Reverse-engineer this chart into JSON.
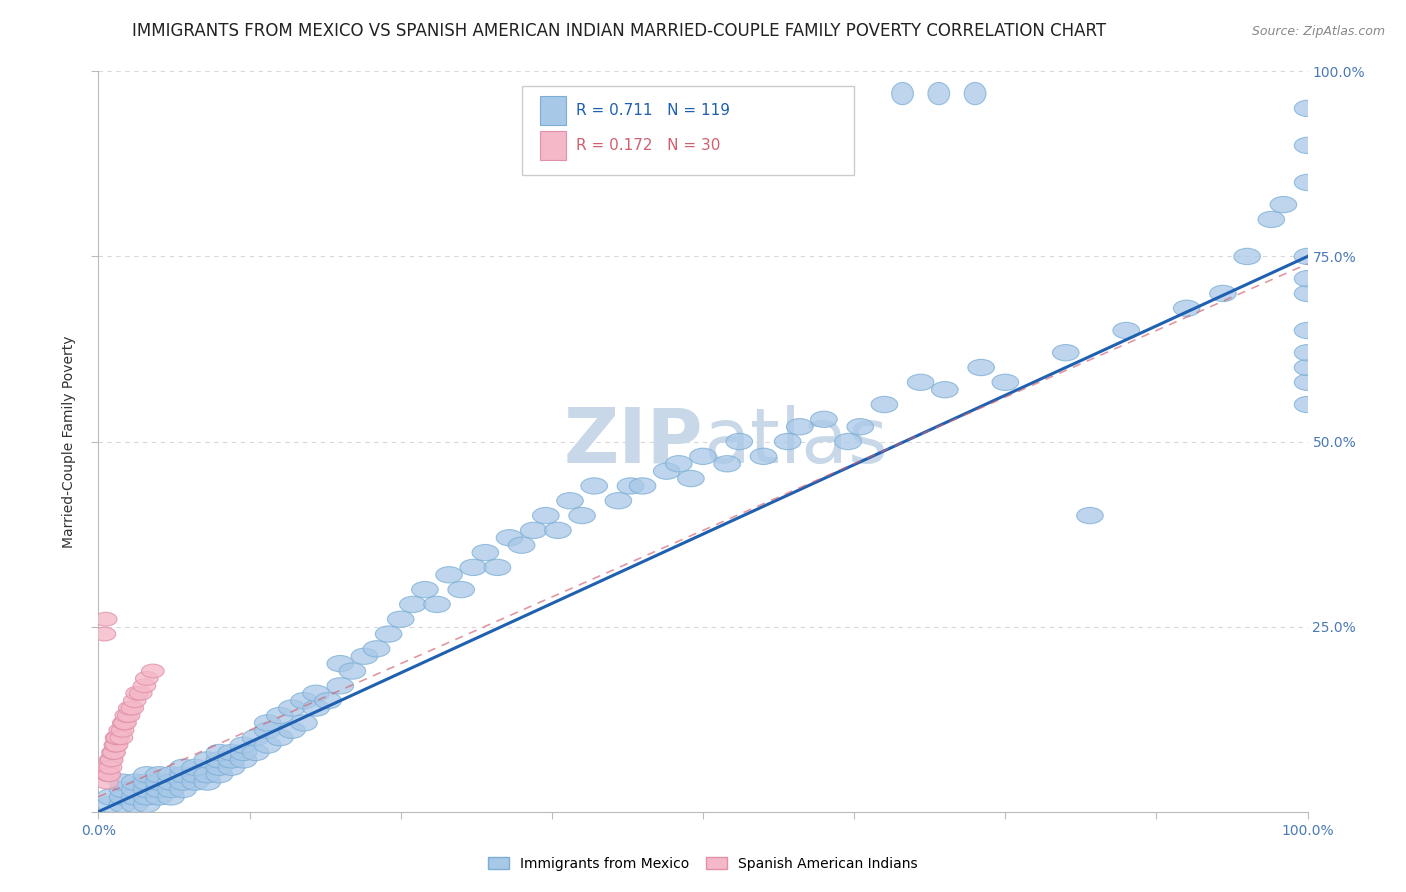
{
  "title": "IMMIGRANTS FROM MEXICO VS SPANISH AMERICAN INDIAN MARRIED-COUPLE FAMILY POVERTY CORRELATION CHART",
  "source": "Source: ZipAtlas.com",
  "ylabel": "Married-Couple Family Poverty",
  "xlim": [
    0,
    1.0
  ],
  "ylim": [
    0,
    1.0
  ],
  "blue_color": "#a8c8e8",
  "blue_edge_color": "#7aaed4",
  "pink_color": "#f4b8c8",
  "pink_edge_color": "#e090a8",
  "blue_line_color": "#2060b0",
  "pink_line_color": "#d06070",
  "grid_color": "#d8d8d8",
  "watermark_color": "#dce8f0",
  "R_blue": 0.711,
  "N_blue": 119,
  "R_pink": 0.172,
  "N_pink": 30,
  "blue_slope": 0.75,
  "blue_intercept": 0.0,
  "pink_slope": 0.72,
  "pink_intercept": 0.02,
  "background_color": "#ffffff",
  "title_fontsize": 12,
  "axis_label_fontsize": 10,
  "tick_fontsize": 10,
  "legend_fontsize": 11,
  "watermark_fontsize": 55,
  "blue_scatter_x": [
    0.01,
    0.01,
    0.02,
    0.02,
    0.02,
    0.02,
    0.03,
    0.03,
    0.03,
    0.03,
    0.04,
    0.04,
    0.04,
    0.04,
    0.04,
    0.05,
    0.05,
    0.05,
    0.05,
    0.06,
    0.06,
    0.06,
    0.06,
    0.07,
    0.07,
    0.07,
    0.07,
    0.08,
    0.08,
    0.08,
    0.09,
    0.09,
    0.09,
    0.1,
    0.1,
    0.1,
    0.1,
    0.11,
    0.11,
    0.11,
    0.12,
    0.12,
    0.12,
    0.13,
    0.13,
    0.14,
    0.14,
    0.14,
    0.15,
    0.15,
    0.16,
    0.16,
    0.17,
    0.17,
    0.18,
    0.18,
    0.19,
    0.2,
    0.2,
    0.21,
    0.22,
    0.23,
    0.24,
    0.25,
    0.26,
    0.27,
    0.28,
    0.29,
    0.3,
    0.31,
    0.32,
    0.33,
    0.34,
    0.35,
    0.36,
    0.37,
    0.38,
    0.39,
    0.4,
    0.41,
    0.43,
    0.44,
    0.45,
    0.47,
    0.48,
    0.49,
    0.5,
    0.52,
    0.53,
    0.55,
    0.57,
    0.58,
    0.6,
    0.62,
    0.63,
    0.65,
    0.68,
    0.7,
    0.73,
    0.75,
    0.8,
    0.82,
    0.85,
    0.9,
    0.93,
    0.95,
    0.97,
    0.98,
    1.0,
    1.0,
    1.0,
    1.0,
    1.0,
    1.0,
    1.0,
    1.0,
    1.0,
    1.0,
    1.0
  ],
  "blue_scatter_y": [
    0.01,
    0.02,
    0.01,
    0.02,
    0.03,
    0.04,
    0.01,
    0.02,
    0.03,
    0.04,
    0.01,
    0.02,
    0.03,
    0.04,
    0.05,
    0.02,
    0.03,
    0.04,
    0.05,
    0.02,
    0.03,
    0.04,
    0.05,
    0.03,
    0.04,
    0.05,
    0.06,
    0.04,
    0.05,
    0.06,
    0.04,
    0.05,
    0.07,
    0.05,
    0.06,
    0.07,
    0.08,
    0.06,
    0.07,
    0.08,
    0.07,
    0.08,
    0.09,
    0.08,
    0.1,
    0.09,
    0.11,
    0.12,
    0.1,
    0.13,
    0.11,
    0.14,
    0.12,
    0.15,
    0.14,
    0.16,
    0.15,
    0.17,
    0.2,
    0.19,
    0.21,
    0.22,
    0.24,
    0.26,
    0.28,
    0.3,
    0.28,
    0.32,
    0.3,
    0.33,
    0.35,
    0.33,
    0.37,
    0.36,
    0.38,
    0.4,
    0.38,
    0.42,
    0.4,
    0.44,
    0.42,
    0.44,
    0.44,
    0.46,
    0.47,
    0.45,
    0.48,
    0.47,
    0.5,
    0.48,
    0.5,
    0.52,
    0.53,
    0.5,
    0.52,
    0.55,
    0.58,
    0.57,
    0.6,
    0.58,
    0.62,
    0.4,
    0.65,
    0.68,
    0.7,
    0.75,
    0.8,
    0.82,
    0.85,
    0.55,
    0.58,
    0.6,
    0.62,
    0.65,
    0.7,
    0.72,
    0.75,
    0.9,
    0.95
  ],
  "pink_scatter_x": [
    0.005,
    0.006,
    0.007,
    0.008,
    0.008,
    0.009,
    0.01,
    0.01,
    0.011,
    0.012,
    0.013,
    0.014,
    0.015,
    0.015,
    0.016,
    0.018,
    0.019,
    0.02,
    0.021,
    0.022,
    0.023,
    0.025,
    0.026,
    0.028,
    0.03,
    0.032,
    0.035,
    0.038,
    0.04,
    0.045
  ],
  "pink_scatter_y": [
    0.24,
    0.26,
    0.04,
    0.05,
    0.06,
    0.05,
    0.07,
    0.06,
    0.07,
    0.08,
    0.08,
    0.09,
    0.09,
    0.1,
    0.1,
    0.11,
    0.1,
    0.11,
    0.12,
    0.12,
    0.13,
    0.13,
    0.14,
    0.14,
    0.15,
    0.16,
    0.16,
    0.17,
    0.18,
    0.19
  ]
}
